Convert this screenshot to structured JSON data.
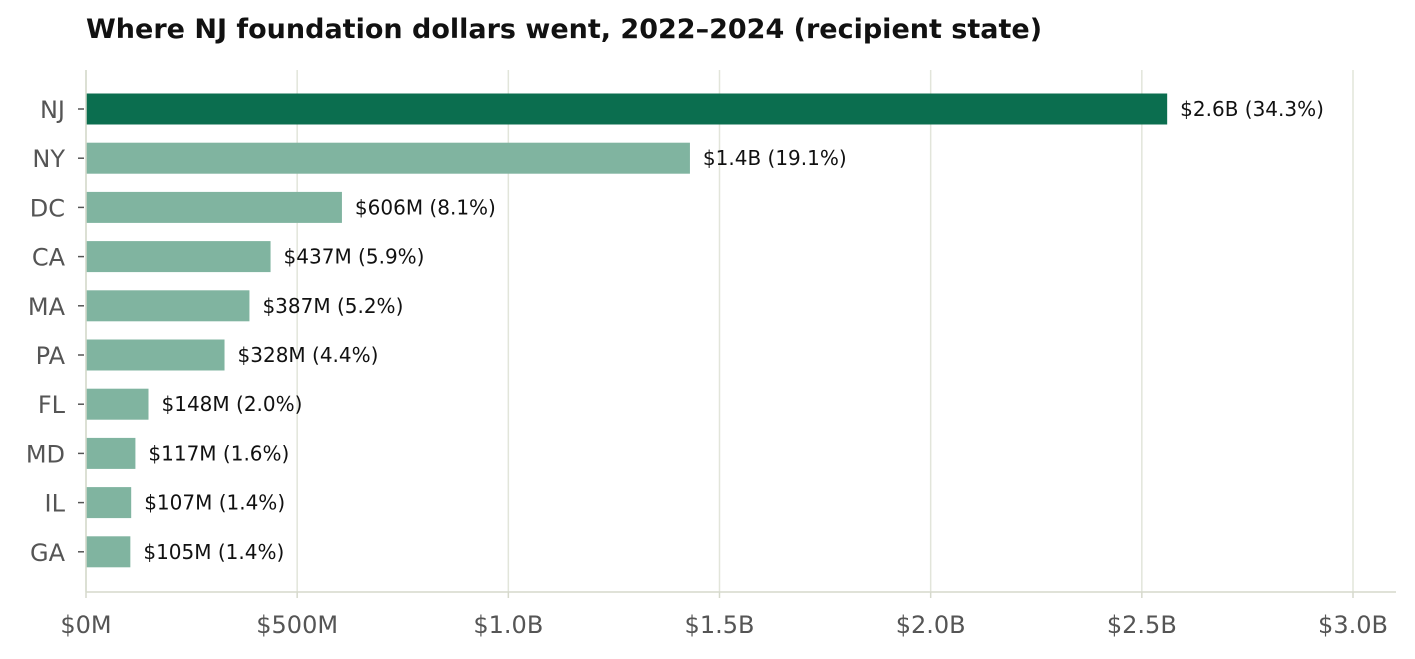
{
  "chart_data": {
    "type": "bar",
    "orientation": "horizontal",
    "title": "Where NJ foundation dollars went, 2022–2024 (recipient state)",
    "xlabel": "",
    "ylabel": "",
    "xlim": [
      0,
      3000000000
    ],
    "x_ticks": [
      {
        "value": 0,
        "label": "$0M"
      },
      {
        "value": 500000000,
        "label": "$500M"
      },
      {
        "value": 1000000000,
        "label": "$1.0B"
      },
      {
        "value": 1500000000,
        "label": "$1.5B"
      },
      {
        "value": 2000000000,
        "label": "$2.0B"
      },
      {
        "value": 2500000000,
        "label": "$2.5B"
      },
      {
        "value": 3000000000,
        "label": "$3.0B"
      }
    ],
    "grid": "vertical",
    "legend": "none",
    "highlight_category": "NJ",
    "colors": {
      "highlight": "#0b6e4f",
      "default": "#80b4a0",
      "grid": "#e2e5da",
      "axis": "#d6d9cc"
    },
    "categories": [
      "NJ",
      "NY",
      "DC",
      "CA",
      "MA",
      "PA",
      "FL",
      "MD",
      "IL",
      "GA"
    ],
    "values": [
      2560000000,
      1430000000,
      606000000,
      437000000,
      387000000,
      328000000,
      148000000,
      117000000,
      107000000,
      105000000
    ],
    "value_labels": [
      "$2.6B  (34.3%)",
      "$1.4B  (19.1%)",
      "$606M  (8.1%)",
      "$437M  (5.9%)",
      "$387M  (5.2%)",
      "$328M  (4.4%)",
      "$148M  (2.0%)",
      "$117M  (1.6%)",
      "$107M  (1.4%)",
      "$105M  (1.4%)"
    ]
  }
}
